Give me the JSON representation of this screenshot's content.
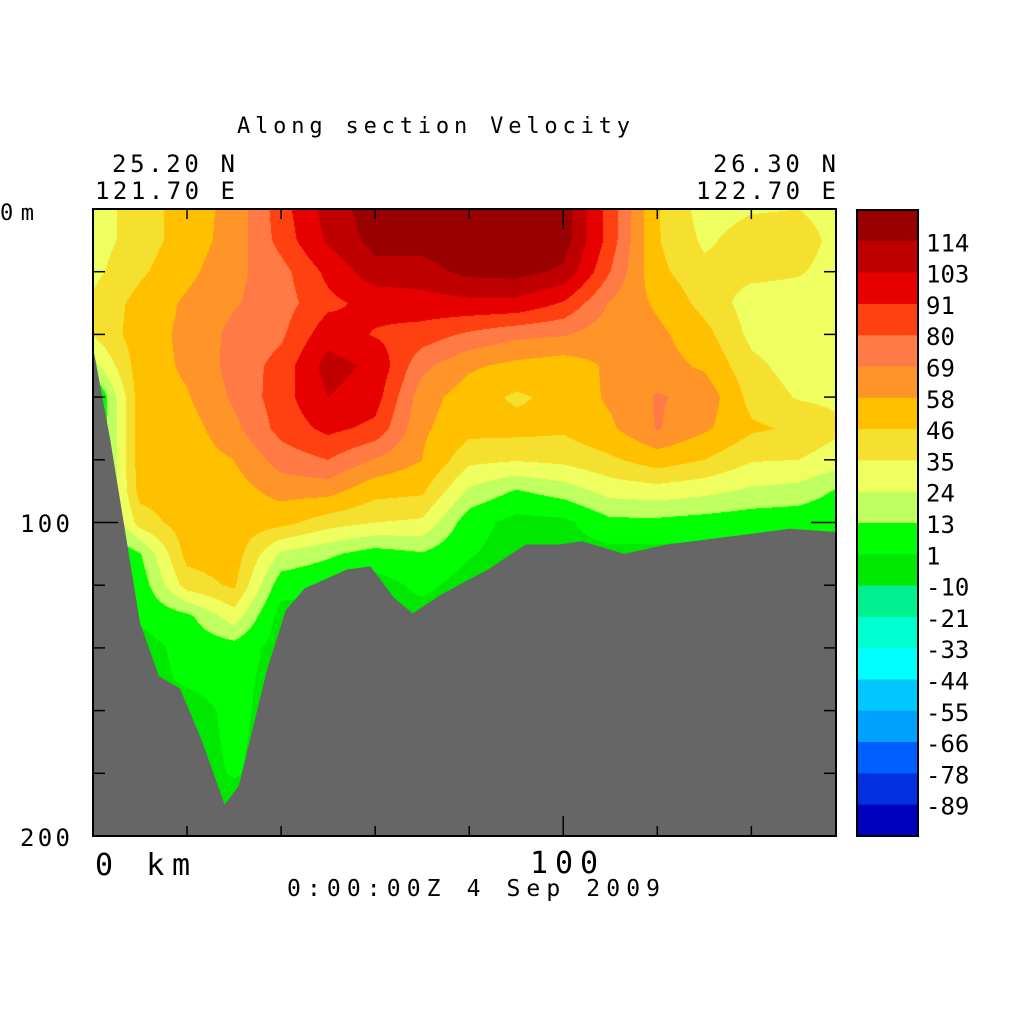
{
  "chart_data": {
    "type": "heatmap",
    "subtype": "filled-contour-section",
    "title": "Along section Velocity",
    "start_location": {
      "lat": "25.20 N",
      "lon": "121.70 E"
    },
    "end_location": {
      "lat": "26.30 N",
      "lon": "122.70 E"
    },
    "time_label": "0:00:00Z   4 Sep 2009",
    "xaxis": {
      "label_start": "0 km",
      "tick_label_100": "100",
      "unit": "km",
      "range": [
        0,
        158
      ],
      "major_ticks": [
        20,
        40,
        60,
        80,
        100,
        120,
        140
      ]
    },
    "yaxis": {
      "top_label": "0m",
      "labels": [
        "100",
        "200"
      ],
      "unit": "m",
      "range": [
        0,
        200
      ],
      "inverted": true,
      "major_ticks": [
        20,
        40,
        60,
        80,
        100,
        120,
        140,
        160,
        180
      ]
    },
    "colorbar": {
      "levels": [
        -89,
        -78,
        -66,
        -55,
        -44,
        -33,
        -21,
        -10,
        1,
        13,
        24,
        35,
        46,
        58,
        69,
        80,
        91,
        103,
        114
      ],
      "labels": [
        "114",
        "103",
        "91",
        "80",
        "69",
        "58",
        "46",
        "35",
        "24",
        "13",
        "1",
        "-10",
        "-21",
        "-33",
        "-44",
        "-55",
        "-66",
        "-78",
        "-89"
      ],
      "colors_ascending": [
        "#0000c0",
        "#0030e0",
        "#0060ff",
        "#00a0ff",
        "#00c8ff",
        "#00ffff",
        "#00ffd0",
        "#00f090",
        "#00e800",
        "#00ff00",
        "#c0ff60",
        "#f0ff60",
        "#f5e030",
        "#ffc000",
        "#ff9428",
        "#ff7a45",
        "#ff4010",
        "#e60000",
        "#c00000",
        "#990000"
      ]
    },
    "land_color": "#666666",
    "grid_depths_m": [
      0,
      10,
      20,
      30,
      40,
      50,
      60,
      70,
      80,
      90,
      100,
      110,
      120,
      130,
      140,
      150,
      160,
      170,
      180,
      190,
      200
    ],
    "profiles": [
      {
        "km": 0,
        "values": [
          30,
          30,
          32,
          37,
          36,
          20,
          -4,
          -4,
          -4,
          -4,
          -4,
          -4,
          -4,
          -4,
          -4,
          -4,
          -4,
          -4,
          -4,
          -4,
          -4
        ]
      },
      {
        "km": 10,
        "values": [
          40,
          40,
          44,
          50,
          52,
          52,
          52,
          52,
          52,
          50,
          40,
          12,
          6,
          3,
          -4,
          -4,
          -4,
          -4,
          -4,
          -4,
          -4
        ]
      },
      {
        "km": 20,
        "values": [
          52,
          52,
          55,
          60,
          61,
          60,
          57,
          53,
          52,
          52,
          52,
          50,
          40,
          10,
          5,
          3,
          -4,
          -4,
          -4,
          -4,
          -4
        ]
      },
      {
        "km": 30,
        "values": [
          62,
          63,
          66,
          68,
          72,
          73,
          71,
          66,
          58,
          53,
          52,
          52,
          48,
          30,
          8,
          5,
          4,
          3,
          2,
          -4,
          -4
        ]
      },
      {
        "km": 40,
        "values": [
          86,
          84,
          76,
          75,
          78,
          84,
          86,
          84,
          74,
          62,
          50,
          22,
          6,
          -4,
          -4,
          -4,
          -4,
          -4,
          -4,
          -4,
          -4
        ]
      },
      {
        "km": 50,
        "values": [
          108,
          105,
          94,
          88,
          98,
          108,
          103,
          94,
          80,
          62,
          40,
          15,
          3,
          -4,
          -4,
          -4,
          -4,
          -4,
          -4,
          -4,
          -4
        ]
      },
      {
        "km": 60,
        "values": [
          120,
          118,
          110,
          95,
          90,
          100,
          96,
          88,
          68,
          50,
          35,
          8,
          -4,
          -4,
          -4,
          -4,
          -4,
          -4,
          -4,
          -4,
          -4
        ]
      },
      {
        "km": 70,
        "values": [
          120,
          118,
          110,
          98,
          86,
          72,
          63,
          60,
          58,
          48,
          33,
          12,
          4,
          -4,
          -4,
          -4,
          -4,
          -4,
          -4,
          -4,
          -4
        ]
      },
      {
        "km": 80,
        "values": [
          122,
          122,
          117,
          100,
          78,
          60,
          52,
          50,
          38,
          22,
          6,
          2,
          -4,
          -4,
          -4,
          -4,
          -4,
          -4,
          -4,
          -4,
          -4
        ]
      },
      {
        "km": 90,
        "values": [
          122,
          122,
          118,
          100,
          72,
          55,
          44,
          50,
          36,
          12,
          -3,
          -4,
          -4,
          -4,
          -4,
          -4,
          -4,
          -4,
          -4,
          -4,
          -4
        ]
      },
      {
        "km": 100,
        "values": [
          120,
          120,
          112,
          90,
          70,
          52,
          50,
          48,
          38,
          18,
          -2,
          -4,
          -4,
          -4,
          -4,
          -4,
          -4,
          -4,
          -4,
          -4,
          -4
        ]
      },
      {
        "km": 110,
        "values": [
          86,
          86,
          80,
          68,
          62,
          60,
          60,
          56,
          44,
          28,
          10,
          -3,
          -4,
          -4,
          -4,
          -4,
          -4,
          -4,
          -4,
          -4,
          -4
        ]
      },
      {
        "km": 120,
        "values": [
          47,
          47,
          49,
          56,
          61,
          63,
          70,
          70,
          52,
          30,
          10,
          -3,
          -4,
          -4,
          -4,
          -4,
          -4,
          -4,
          -4,
          -4,
          -4
        ]
      },
      {
        "km": 130,
        "values": [
          30,
          33,
          38,
          42,
          50,
          56,
          66,
          60,
          46,
          27,
          8,
          -4,
          -4,
          -4,
          -4,
          -4,
          -4,
          -4,
          -4,
          -4,
          -4
        ]
      },
      {
        "km": 140,
        "values": [
          34,
          40,
          38,
          30,
          32,
          38,
          42,
          48,
          36,
          22,
          6,
          -4,
          -4,
          -4,
          -4,
          -4,
          -4,
          -4,
          -4,
          -4,
          -4
        ]
      },
      {
        "km": 150,
        "values": [
          35,
          40,
          36,
          30,
          28,
          30,
          34,
          44,
          35,
          20,
          5,
          -4,
          -4,
          -4,
          -4,
          -4,
          -4,
          -4,
          -4,
          -4,
          -4
        ]
      },
      {
        "km": 160,
        "values": [
          30,
          30,
          30,
          28,
          28,
          28,
          32,
          36,
          28,
          10,
          3,
          -4,
          -4,
          -4,
          -4,
          -4,
          -4,
          -4,
          -4,
          -4,
          -4
        ]
      }
    ],
    "bathymetry_km_m": [
      [
        0,
        44
      ],
      [
        3.6,
        73
      ],
      [
        10,
        132
      ],
      [
        14,
        149
      ],
      [
        18.5,
        153
      ],
      [
        23,
        169
      ],
      [
        28,
        190
      ],
      [
        31,
        184
      ],
      [
        37,
        147
      ],
      [
        41,
        128
      ],
      [
        45,
        121
      ],
      [
        54,
        115
      ],
      [
        59,
        114
      ],
      [
        64,
        124
      ],
      [
        68,
        129
      ],
      [
        74,
        123
      ],
      [
        84,
        115
      ],
      [
        92,
        107
      ],
      [
        99,
        107
      ],
      [
        104,
        106
      ],
      [
        113,
        110
      ],
      [
        122,
        107
      ],
      [
        138,
        104
      ],
      [
        148,
        102
      ],
      [
        158,
        103
      ]
    ]
  }
}
